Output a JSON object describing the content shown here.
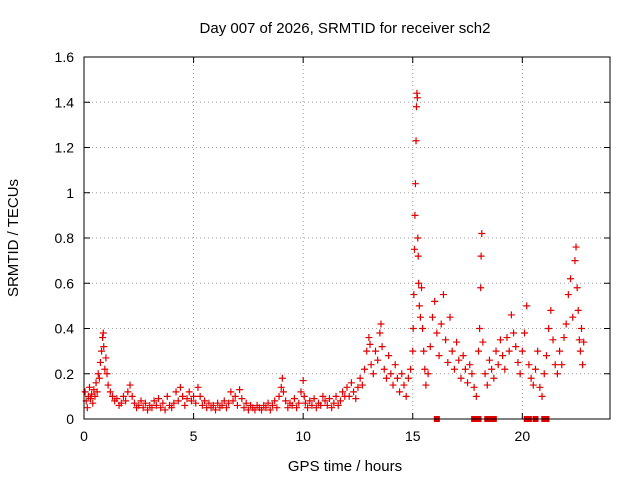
{
  "chart_data": {
    "type": "scatter",
    "title": "Day 007 of 2026, SRMTID for receiver sch2",
    "xlabel": "GPS time / hours",
    "ylabel": "SRMTID / TECUs",
    "xlim": [
      0,
      24
    ],
    "ylim": [
      0,
      1.6
    ],
    "xticks": [
      0,
      5,
      10,
      15,
      20
    ],
    "xtick_labels": [
      "0",
      "5",
      "10",
      "15",
      "20"
    ],
    "yticks": [
      0,
      0.2,
      0.4,
      0.6,
      0.8,
      1.0,
      1.2,
      1.4,
      1.6
    ],
    "ytick_labels": [
      "0",
      "0.2",
      "0.4",
      "0.6",
      "0.8",
      "1",
      "1.2",
      "1.4",
      "1.6"
    ],
    "grid": true,
    "marker": "+",
    "color": "#e00000",
    "series": [
      {
        "name": "sch2",
        "points": [
          [
            0.05,
            0.12
          ],
          [
            0.1,
            0.08
          ],
          [
            0.15,
            0.05
          ],
          [
            0.2,
            0.1
          ],
          [
            0.25,
            0.14
          ],
          [
            0.3,
            0.09
          ],
          [
            0.35,
            0.11
          ],
          [
            0.4,
            0.07
          ],
          [
            0.45,
            0.13
          ],
          [
            0.5,
            0.1
          ],
          [
            0.55,
            0.16
          ],
          [
            0.6,
            0.12
          ],
          [
            0.65,
            0.2
          ],
          [
            0.7,
            0.18
          ],
          [
            0.75,
            0.25
          ],
          [
            0.8,
            0.3
          ],
          [
            0.85,
            0.36
          ],
          [
            0.88,
            0.38
          ],
          [
            0.9,
            0.32
          ],
          [
            0.95,
            0.22
          ],
          [
            1.0,
            0.27
          ],
          [
            1.05,
            0.2
          ],
          [
            1.1,
            0.15
          ],
          [
            1.2,
            0.12
          ],
          [
            1.3,
            0.1
          ],
          [
            1.4,
            0.08
          ],
          [
            1.5,
            0.09
          ],
          [
            1.6,
            0.06
          ],
          [
            1.7,
            0.07
          ],
          [
            1.8,
            0.1
          ],
          [
            1.9,
            0.08
          ],
          [
            2.0,
            0.12
          ],
          [
            2.1,
            0.15
          ],
          [
            2.2,
            0.1
          ],
          [
            2.3,
            0.07
          ],
          [
            2.4,
            0.05
          ],
          [
            2.5,
            0.06
          ],
          [
            2.6,
            0.08
          ],
          [
            2.7,
            0.05
          ],
          [
            2.8,
            0.07
          ],
          [
            2.9,
            0.04
          ],
          [
            3.0,
            0.06
          ],
          [
            3.1,
            0.05
          ],
          [
            3.2,
            0.08
          ],
          [
            3.3,
            0.06
          ],
          [
            3.4,
            0.09
          ],
          [
            3.5,
            0.05
          ],
          [
            3.6,
            0.07
          ],
          [
            3.7,
            0.04
          ],
          [
            3.8,
            0.1
          ],
          [
            3.9,
            0.06
          ],
          [
            4.0,
            0.05
          ],
          [
            4.1,
            0.07
          ],
          [
            4.2,
            0.12
          ],
          [
            4.3,
            0.08
          ],
          [
            4.4,
            0.14
          ],
          [
            4.5,
            0.1
          ],
          [
            4.6,
            0.06
          ],
          [
            4.7,
            0.09
          ],
          [
            4.8,
            0.12
          ],
          [
            4.9,
            0.08
          ],
          [
            5.0,
            0.1
          ],
          [
            5.1,
            0.07
          ],
          [
            5.2,
            0.14
          ],
          [
            5.3,
            0.1
          ],
          [
            5.4,
            0.06
          ],
          [
            5.5,
            0.08
          ],
          [
            5.6,
            0.05
          ],
          [
            5.7,
            0.07
          ],
          [
            5.8,
            0.05
          ],
          [
            5.9,
            0.06
          ],
          [
            6.0,
            0.04
          ],
          [
            6.1,
            0.07
          ],
          [
            6.2,
            0.05
          ],
          [
            6.3,
            0.06
          ],
          [
            6.4,
            0.08
          ],
          [
            6.5,
            0.05
          ],
          [
            6.6,
            0.07
          ],
          [
            6.7,
            0.12
          ],
          [
            6.8,
            0.08
          ],
          [
            6.9,
            0.1
          ],
          [
            7.0,
            0.06
          ],
          [
            7.1,
            0.13
          ],
          [
            7.2,
            0.09
          ],
          [
            7.3,
            0.05
          ],
          [
            7.4,
            0.07
          ],
          [
            7.5,
            0.04
          ],
          [
            7.6,
            0.06
          ],
          [
            7.7,
            0.05
          ],
          [
            7.8,
            0.04
          ],
          [
            7.9,
            0.06
          ],
          [
            8.0,
            0.05
          ],
          [
            8.1,
            0.04
          ],
          [
            8.2,
            0.06
          ],
          [
            8.3,
            0.05
          ],
          [
            8.4,
            0.07
          ],
          [
            8.5,
            0.04
          ],
          [
            8.6,
            0.06
          ],
          [
            8.7,
            0.08
          ],
          [
            8.8,
            0.05
          ],
          [
            8.9,
            0.1
          ],
          [
            9.0,
            0.14
          ],
          [
            9.05,
            0.18
          ],
          [
            9.1,
            0.12
          ],
          [
            9.2,
            0.08
          ],
          [
            9.3,
            0.05
          ],
          [
            9.4,
            0.07
          ],
          [
            9.5,
            0.06
          ],
          [
            9.6,
            0.09
          ],
          [
            9.7,
            0.05
          ],
          [
            9.8,
            0.07
          ],
          [
            9.9,
            0.12
          ],
          [
            10.0,
            0.17
          ],
          [
            10.05,
            0.1
          ],
          [
            10.1,
            0.07
          ],
          [
            10.2,
            0.05
          ],
          [
            10.3,
            0.08
          ],
          [
            10.4,
            0.06
          ],
          [
            10.5,
            0.09
          ],
          [
            10.6,
            0.05
          ],
          [
            10.7,
            0.07
          ],
          [
            10.8,
            0.06
          ],
          [
            10.9,
            0.1
          ],
          [
            11.0,
            0.08
          ],
          [
            11.1,
            0.06
          ],
          [
            11.2,
            0.09
          ],
          [
            11.3,
            0.05
          ],
          [
            11.4,
            0.07
          ],
          [
            11.5,
            0.1
          ],
          [
            11.6,
            0.06
          ],
          [
            11.7,
            0.08
          ],
          [
            11.8,
            0.12
          ],
          [
            11.9,
            0.1
          ],
          [
            12.0,
            0.14
          ],
          [
            12.1,
            0.1
          ],
          [
            12.2,
            0.16
          ],
          [
            12.3,
            0.12
          ],
          [
            12.4,
            0.09
          ],
          [
            12.5,
            0.14
          ],
          [
            12.6,
            0.18
          ],
          [
            12.7,
            0.15
          ],
          [
            12.8,
            0.22
          ],
          [
            12.9,
            0.3
          ],
          [
            13.0,
            0.36
          ],
          [
            13.05,
            0.33
          ],
          [
            13.1,
            0.24
          ],
          [
            13.2,
            0.2
          ],
          [
            13.3,
            0.3
          ],
          [
            13.4,
            0.26
          ],
          [
            13.5,
            0.38
          ],
          [
            13.55,
            0.42
          ],
          [
            13.6,
            0.32
          ],
          [
            13.7,
            0.22
          ],
          [
            13.8,
            0.18
          ],
          [
            13.9,
            0.28
          ],
          [
            14.0,
            0.2
          ],
          [
            14.1,
            0.15
          ],
          [
            14.2,
            0.24
          ],
          [
            14.3,
            0.18
          ],
          [
            14.4,
            0.12
          ],
          [
            14.5,
            0.2
          ],
          [
            14.6,
            0.15
          ],
          [
            14.7,
            0.1
          ],
          [
            14.8,
            0.18
          ],
          [
            14.9,
            0.22
          ],
          [
            15.0,
            0.3
          ],
          [
            15.02,
            0.4
          ],
          [
            15.05,
            0.55
          ],
          [
            15.08,
            0.75
          ],
          [
            15.1,
            0.9
          ],
          [
            15.12,
            1.04
          ],
          [
            15.15,
            1.23
          ],
          [
            15.17,
            1.38
          ],
          [
            15.19,
            1.44
          ],
          [
            15.21,
            1.42
          ],
          [
            15.23,
            0.8
          ],
          [
            15.25,
            0.72
          ],
          [
            15.27,
            0.6
          ],
          [
            15.3,
            0.5
          ],
          [
            15.35,
            0.45
          ],
          [
            15.4,
            0.58
          ],
          [
            15.45,
            0.4
          ],
          [
            15.5,
            0.3
          ],
          [
            15.55,
            0.22
          ],
          [
            15.6,
            0.15
          ],
          [
            15.7,
            0.2
          ],
          [
            15.8,
            0.32
          ],
          [
            15.9,
            0.45
          ],
          [
            16.0,
            0.52
          ],
          [
            16.1,
            0.38
          ],
          [
            16.2,
            0.28
          ],
          [
            16.3,
            0.42
          ],
          [
            16.4,
            0.55
          ],
          [
            16.5,
            0.35
          ],
          [
            16.6,
            0.25
          ],
          [
            16.7,
            0.45
          ],
          [
            16.8,
            0.3
          ],
          [
            16.9,
            0.22
          ],
          [
            17.0,
            0.34
          ],
          [
            17.1,
            0.26
          ],
          [
            17.2,
            0.18
          ],
          [
            17.3,
            0.28
          ],
          [
            17.4,
            0.22
          ],
          [
            17.5,
            0.16
          ],
          [
            17.6,
            0.24
          ],
          [
            17.7,
            0.2
          ],
          [
            17.8,
            0.14
          ],
          [
            17.9,
            0.1
          ],
          [
            18.0,
            0.3
          ],
          [
            18.05,
            0.4
          ],
          [
            18.1,
            0.58
          ],
          [
            18.12,
            0.72
          ],
          [
            18.15,
            0.82
          ],
          [
            18.2,
            0.34
          ],
          [
            18.3,
            0.2
          ],
          [
            18.4,
            0.15
          ],
          [
            18.5,
            0.26
          ],
          [
            18.6,
            0.22
          ],
          [
            18.7,
            0.18
          ],
          [
            18.8,
            0.3
          ],
          [
            18.9,
            0.24
          ],
          [
            19.0,
            0.35
          ],
          [
            19.1,
            0.28
          ],
          [
            19.2,
            0.22
          ],
          [
            19.3,
            0.36
          ],
          [
            19.4,
            0.3
          ],
          [
            19.5,
            0.46
          ],
          [
            19.6,
            0.38
          ],
          [
            19.7,
            0.32
          ],
          [
            19.8,
            0.25
          ],
          [
            19.9,
            0.2
          ],
          [
            20.0,
            0.3
          ],
          [
            20.1,
            0.38
          ],
          [
            20.2,
            0.5
          ],
          [
            20.3,
            0.24
          ],
          [
            20.4,
            0.18
          ],
          [
            20.5,
            0.15
          ],
          [
            20.6,
            0.22
          ],
          [
            20.7,
            0.3
          ],
          [
            20.8,
            0.14
          ],
          [
            20.9,
            0.1
          ],
          [
            21.0,
            0.2
          ],
          [
            21.1,
            0.28
          ],
          [
            21.2,
            0.4
          ],
          [
            21.3,
            0.48
          ],
          [
            21.4,
            0.35
          ],
          [
            21.5,
            0.24
          ],
          [
            21.6,
            0.2
          ],
          [
            21.7,
            0.3
          ],
          [
            21.8,
            0.24
          ],
          [
            21.9,
            0.36
          ],
          [
            22.0,
            0.42
          ],
          [
            22.1,
            0.55
          ],
          [
            22.2,
            0.62
          ],
          [
            22.3,
            0.45
          ],
          [
            22.4,
            0.7
          ],
          [
            22.45,
            0.76
          ],
          [
            22.5,
            0.58
          ],
          [
            22.55,
            0.48
          ],
          [
            22.6,
            0.35
          ],
          [
            22.65,
            0.3
          ],
          [
            22.7,
            0.4
          ],
          [
            22.75,
            0.24
          ],
          [
            22.8,
            0.34
          ],
          [
            16.1,
            0
          ],
          [
            17.8,
            0
          ],
          [
            17.9,
            0
          ],
          [
            18.0,
            0
          ],
          [
            18.4,
            0
          ],
          [
            18.5,
            0
          ],
          [
            18.7,
            0
          ],
          [
            20.2,
            0
          ],
          [
            20.3,
            0
          ],
          [
            20.6,
            0
          ],
          [
            21.0,
            0
          ],
          [
            21.1,
            0
          ]
        ]
      }
    ]
  }
}
